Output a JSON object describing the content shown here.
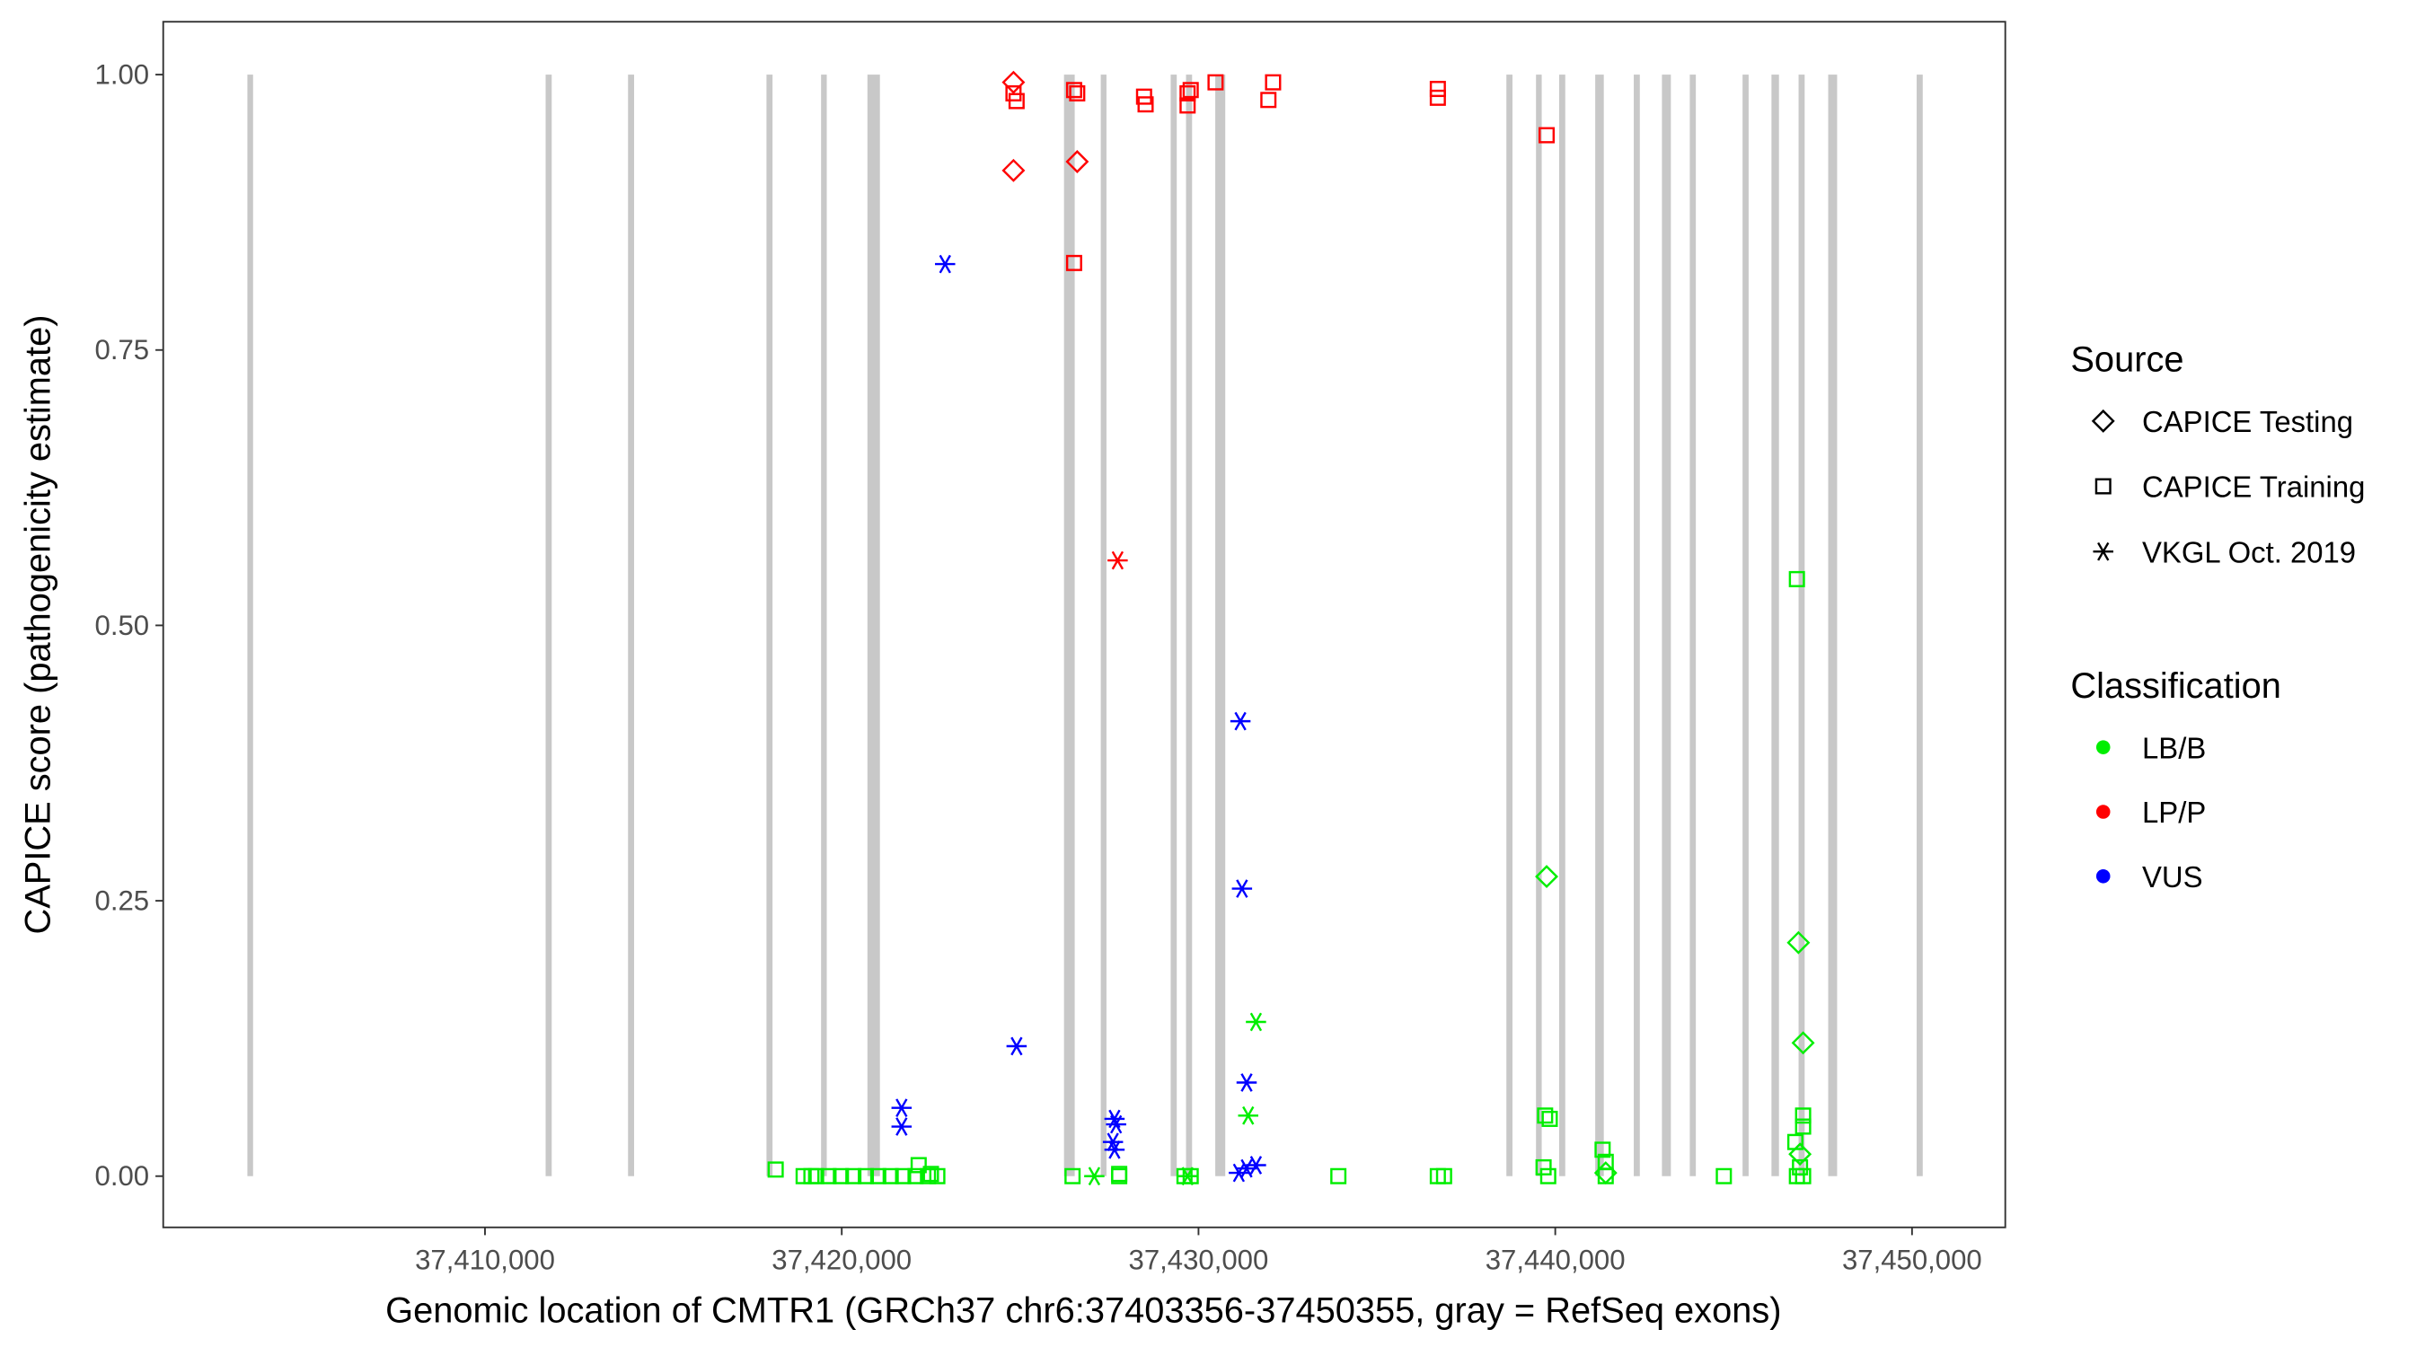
{
  "chart_data": {
    "type": "scatter",
    "xlabel": "Genomic location of CMTR1 (GRCh37 chr6:37403356-37450355, gray = RefSeq exons)",
    "ylabel": "CAPICE score (pathogenicity estimate)",
    "xlim": [
      37400981,
      37452614
    ],
    "ylim": [
      -0.0465,
      1.048
    ],
    "x_ticks": [
      37410000,
      37420000,
      37430000,
      37440000,
      37450000
    ],
    "x_tick_labels": [
      "37,410,000",
      "37,420,000",
      "37,430,000",
      "37,440,000",
      "37,450,000"
    ],
    "y_ticks": [
      0,
      0.25,
      0.5,
      0.75,
      1.0
    ],
    "y_tick_labels": [
      "0.00",
      "0.25",
      "0.50",
      "0.75",
      "1.00"
    ],
    "grid": false,
    "legend_position": "right",
    "colors": {
      "LB/B": "#00ee00",
      "LP/P": "#ff0000",
      "VUS": "#0000ff",
      "exon": "#c8c8c8"
    },
    "legend": {
      "source_title": "Source",
      "sources": [
        {
          "label": "CAPICE Testing",
          "shape": "diamond"
        },
        {
          "label": "CAPICE Training",
          "shape": "square"
        },
        {
          "label": "VKGL Oct. 2019",
          "shape": "asterisk"
        }
      ],
      "class_title": "Classification",
      "classes": [
        {
          "label": "LB/B"
        },
        {
          "label": "LP/P"
        },
        {
          "label": "VUS"
        }
      ]
    },
    "exons": [
      [
        37403340,
        37403500
      ],
      [
        37411700,
        37411870
      ],
      [
        37414010,
        37414180
      ],
      [
        37417890,
        37418060
      ],
      [
        37419420,
        37419580
      ],
      [
        37420720,
        37421070
      ],
      [
        37426230,
        37426530
      ],
      [
        37427260,
        37427420
      ],
      [
        37429220,
        37429390
      ],
      [
        37429650,
        37429820
      ],
      [
        37430470,
        37430750
      ],
      [
        37438630,
        37438800
      ],
      [
        37439460,
        37439620
      ],
      [
        37440110,
        37440280
      ],
      [
        37441120,
        37441360
      ],
      [
        37442200,
        37442370
      ],
      [
        37442990,
        37443240
      ],
      [
        37443770,
        37443940
      ],
      [
        37445250,
        37445420
      ],
      [
        37446060,
        37446270
      ],
      [
        37446820,
        37446990
      ],
      [
        37447650,
        37447900
      ],
      [
        37450130,
        37450300
      ]
    ],
    "series": [
      {
        "source": "CAPICE Testing",
        "class": "LP/P",
        "points": [
          [
            37424814,
            0.993
          ],
          [
            37424814,
            0.913
          ],
          [
            37426600,
            0.921
          ]
        ]
      },
      {
        "source": "CAPICE Training",
        "class": "LP/P",
        "points": [
          [
            37424814,
            0.983
          ],
          [
            37424901,
            0.976
          ],
          [
            37426513,
            0.986
          ],
          [
            37426600,
            0.983
          ],
          [
            37426513,
            0.829
          ],
          [
            37428474,
            0.98
          ],
          [
            37428517,
            0.973
          ],
          [
            37429694,
            0.983
          ],
          [
            37429781,
            0.986
          ],
          [
            37429694,
            0.972
          ],
          [
            37430478,
            0.993
          ],
          [
            37432090,
            0.993
          ],
          [
            37431959,
            0.977
          ],
          [
            37436708,
            0.987
          ],
          [
            37436708,
            0.979
          ],
          [
            37439758,
            0.945
          ]
        ]
      },
      {
        "source": "VKGL Oct. 2019",
        "class": "LP/P",
        "points": [
          [
            37427733,
            0.559
          ]
        ]
      },
      {
        "source": "VKGL Oct. 2019",
        "class": "VUS",
        "points": [
          [
            37422897,
            0.828
          ],
          [
            37424901,
            0.118
          ],
          [
            37421677,
            0.062
          ],
          [
            37421677,
            0.045
          ],
          [
            37431175,
            0.413
          ],
          [
            37431219,
            0.261
          ],
          [
            37431349,
            0.085
          ],
          [
            37427646,
            0.052
          ],
          [
            37427690,
            0.047
          ],
          [
            37427602,
            0.031
          ],
          [
            37427646,
            0.024
          ],
          [
            37431131,
            0.003
          ],
          [
            37431349,
            0.007
          ],
          [
            37431611,
            0.01
          ]
        ]
      },
      {
        "source": "CAPICE Testing",
        "class": "LB/B",
        "points": [
          [
            37439758,
            0.272
          ],
          [
            37446816,
            0.212
          ],
          [
            37446947,
            0.121
          ],
          [
            37441414,
            0.003
          ],
          [
            37446860,
            0.02
          ]
        ]
      },
      {
        "source": "VKGL Oct. 2019",
        "class": "LB/B",
        "points": [
          [
            37431611,
            0.14
          ],
          [
            37431393,
            0.055
          ],
          [
            37427079,
            0.0
          ],
          [
            37429694,
            0.0
          ]
        ]
      },
      {
        "source": "CAPICE Training",
        "class": "LB/B",
        "points": [
          [
            37418148,
            0.006
          ],
          [
            37418932,
            0.0
          ],
          [
            37419150,
            0.0
          ],
          [
            37419281,
            0.0
          ],
          [
            37419629,
            0.0
          ],
          [
            37419977,
            0.0
          ],
          [
            37420326,
            0.0
          ],
          [
            37420675,
            0.0
          ],
          [
            37421023,
            0.0
          ],
          [
            37421372,
            0.0
          ],
          [
            37421720,
            0.0
          ],
          [
            37422069,
            0.0
          ],
          [
            37422418,
            0.0
          ],
          [
            37422679,
            0.0
          ],
          [
            37422156,
            0.01
          ],
          [
            37422500,
            0.002
          ],
          [
            37426469,
            0.0
          ],
          [
            37427777,
            0.0
          ],
          [
            37427777,
            0.002
          ],
          [
            37429607,
            0.0
          ],
          [
            37429781,
            0.0
          ],
          [
            37433920,
            0.0
          ],
          [
            37436708,
            0.0
          ],
          [
            37436883,
            0.0
          ],
          [
            37439672,
            0.008
          ],
          [
            37439802,
            0.0
          ],
          [
            37439715,
            0.055
          ],
          [
            37439845,
            0.052
          ],
          [
            37441327,
            0.024
          ],
          [
            37441414,
            0.013
          ],
          [
            37441414,
            0.0
          ],
          [
            37444725,
            0.0
          ],
          [
            37446773,
            0.542
          ],
          [
            37446729,
            0.031
          ],
          [
            37446947,
            0.055
          ],
          [
            37446947,
            0.045
          ],
          [
            37446860,
            0.008
          ],
          [
            37446947,
            0.0
          ],
          [
            37446773,
            0.0
          ]
        ]
      }
    ]
  }
}
